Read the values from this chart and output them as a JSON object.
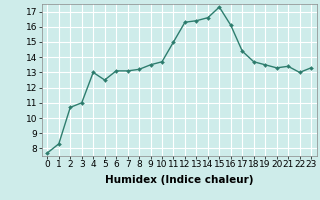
{
  "x": [
    0,
    1,
    2,
    3,
    4,
    5,
    6,
    7,
    8,
    9,
    10,
    11,
    12,
    13,
    14,
    15,
    16,
    17,
    18,
    19,
    20,
    21,
    22,
    23
  ],
  "y": [
    7.7,
    8.3,
    10.7,
    11.0,
    13.0,
    12.5,
    13.1,
    13.1,
    13.2,
    13.5,
    13.7,
    15.0,
    16.3,
    16.4,
    16.6,
    17.3,
    16.1,
    14.4,
    13.7,
    13.5,
    13.3,
    13.4,
    13.0,
    13.3
  ],
  "xlim": [
    -0.5,
    23.5
  ],
  "ylim": [
    7.5,
    17.5
  ],
  "yticks": [
    8,
    9,
    10,
    11,
    12,
    13,
    14,
    15,
    16,
    17
  ],
  "xticks": [
    0,
    1,
    2,
    3,
    4,
    5,
    6,
    7,
    8,
    9,
    10,
    11,
    12,
    13,
    14,
    15,
    16,
    17,
    18,
    19,
    20,
    21,
    22,
    23
  ],
  "xlabel": "Humidex (Indice chaleur)",
  "line_color": "#2e7d6e",
  "marker_color": "#2e7d6e",
  "bg_color": "#ceecea",
  "grid_color": "#ffffff",
  "tick_fontsize": 6.5,
  "xlabel_fontsize": 7.5,
  "marker": "D",
  "marker_size": 2.0,
  "line_width": 1.0
}
